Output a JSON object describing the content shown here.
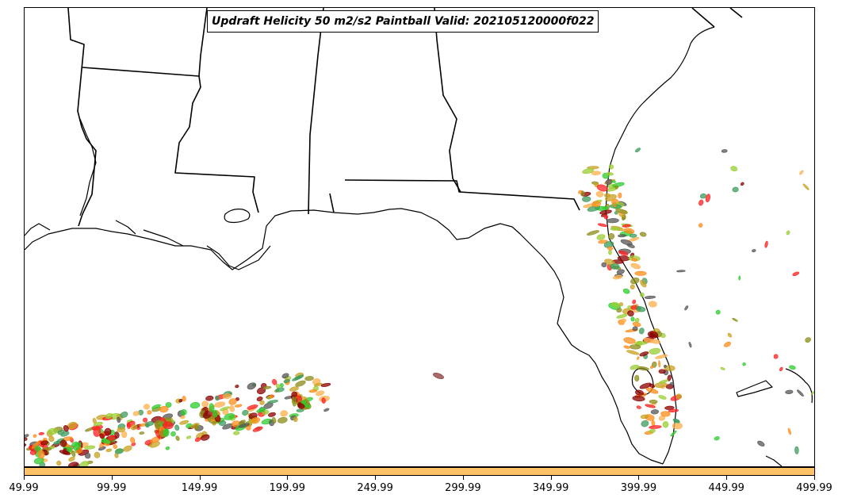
{
  "title": "Updraft Helicity 50 m2/s2 Paintball Valid: 202105120000f022",
  "x_axis": {
    "ticks": [
      "49.99",
      "99.99",
      "149.99",
      "199.99",
      "249.99",
      "299.99",
      "349.99",
      "399.99",
      "449.99",
      "499.99"
    ]
  },
  "colors": {
    "coastline": "#000000",
    "colorbar_fill": "#ffc266",
    "paintball_palette": [
      "#ff2020",
      "#2ecc2e",
      "#ff8c1a",
      "#8c8c1a",
      "#8b0000",
      "#555555",
      "#3c9c5c",
      "#ffb04d",
      "#c8a020",
      "#9acd32"
    ]
  },
  "map": {
    "region": "Southeastern United States / Gulf of Mexico",
    "features": [
      "state-borders",
      "coastline",
      "lakes"
    ]
  }
}
